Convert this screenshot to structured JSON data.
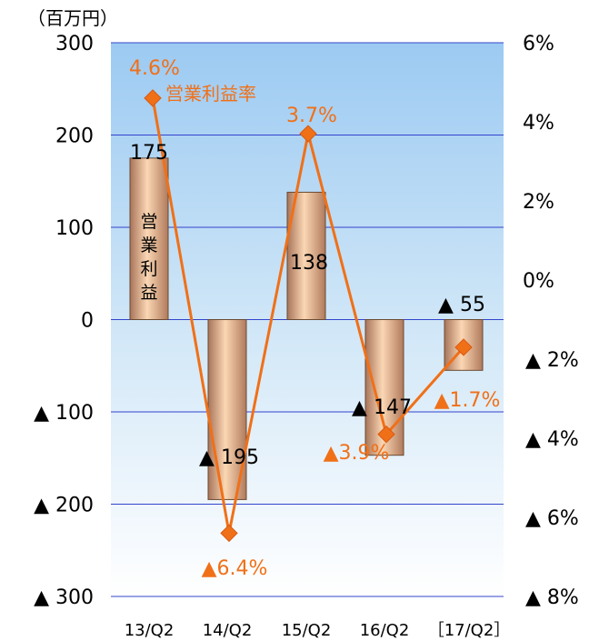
{
  "chart_data": {
    "type": "bar",
    "unit_label": "（百万円）",
    "categories": [
      "13/Q2",
      "14/Q2",
      "15/Q2",
      "16/Q2",
      "［17/Q2］"
    ],
    "series": [
      {
        "name": "営業利益",
        "type": "bar",
        "axis": "left",
        "values": [
          175,
          -195,
          138,
          -147,
          -55
        ],
        "value_labels": [
          "175",
          "▲ 195",
          "138",
          "▲ 147",
          "▲ 55"
        ]
      },
      {
        "name": "営業利益率",
        "type": "line",
        "axis": "right",
        "values": [
          4.6,
          -6.4,
          3.7,
          -3.9,
          -1.7
        ],
        "value_labels": [
          "4.6%",
          "▲6.4%",
          "3.7%",
          "▲3.9%",
          "▲1.7%"
        ]
      }
    ],
    "left_axis": {
      "ylim": [
        -300,
        300
      ],
      "ticks": [
        300,
        200,
        100,
        0,
        -100,
        -200,
        -300
      ],
      "tick_labels": [
        "300",
        "200",
        "100",
        "0",
        "▲ 100",
        "▲ 200",
        "▲ 300"
      ]
    },
    "right_axis": {
      "ylim": [
        -8,
        6
      ],
      "ticks": [
        6,
        4,
        2,
        0,
        -2,
        -4,
        -6,
        -8
      ],
      "tick_labels": [
        "6%",
        "4%",
        "2%",
        "0%",
        "▲ 2%",
        "▲ 4%",
        "▲ 6%",
        "▲ 8%"
      ]
    },
    "grid": true,
    "colors": {
      "bar_fill": "#e8a77a",
      "bar_edge": "#6a4a30",
      "line": "#f07018",
      "label_orange": "#f07018",
      "grid": "#3344cc"
    }
  }
}
